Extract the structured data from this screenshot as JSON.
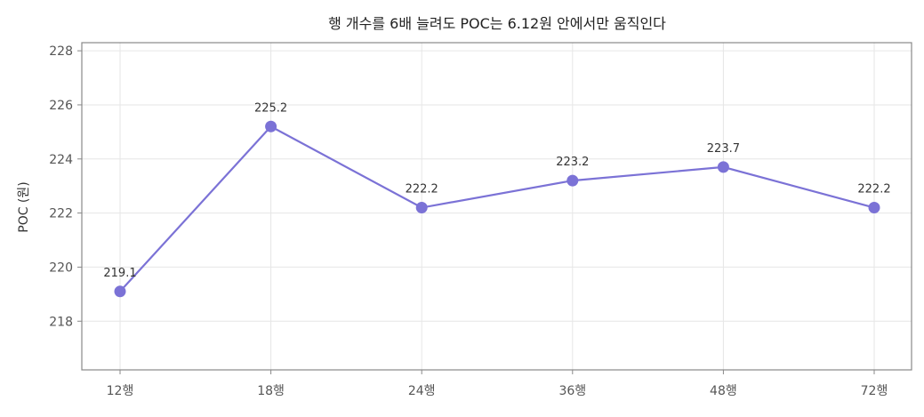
{
  "chart_data": {
    "type": "line",
    "title": "행 개수를 6배 늘려도 POC는 6.12원 안에서만 움직인다",
    "xlabel": "",
    "ylabel": "POC (원)",
    "categories": [
      "12행",
      "18행",
      "24행",
      "36행",
      "48행",
      "72행"
    ],
    "series": [
      {
        "values": [
          219.1,
          225.2,
          222.2,
          223.2,
          223.7,
          222.2
        ],
        "data_labels": [
          "219.1",
          "225.2",
          "222.2",
          "223.2",
          "223.7",
          "222.2"
        ],
        "color": "#7b72d6"
      }
    ],
    "ylim": [
      216.2,
      228.3
    ],
    "yticks": [
      218,
      220,
      222,
      224,
      226,
      228
    ],
    "ytick_labels": [
      "218",
      "220",
      "222",
      "224",
      "226",
      "228"
    ],
    "grid": true,
    "legend": "none"
  }
}
